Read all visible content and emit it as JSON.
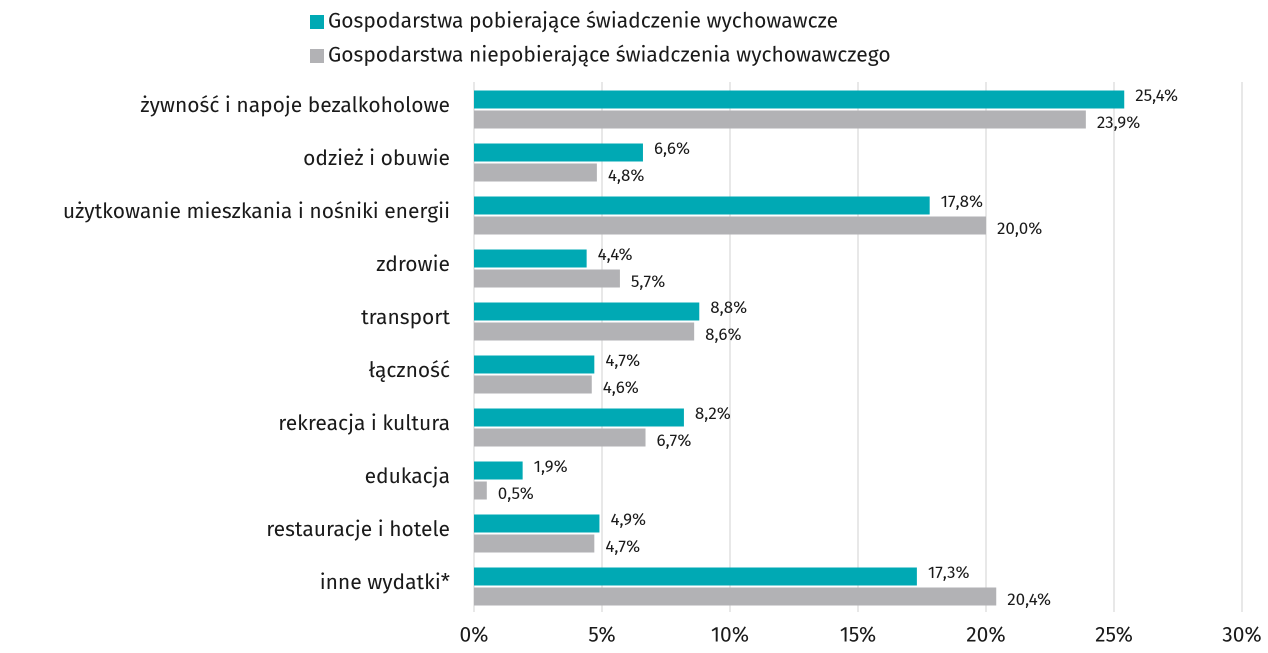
{
  "chart_data": {
    "type": "bar",
    "orientation": "horizontal",
    "categories": [
      "żywność i napoje bezalkoholowe",
      "odzież i obuwie",
      "użytkowanie mieszkania i nośniki energii",
      "zdrowie",
      "transport",
      "łączność",
      "rekreacja i kultura",
      "edukacja",
      "restauracje i hotele",
      "inne wydatki*"
    ],
    "series": [
      {
        "name": "Gospodarstwa pobierające świadczenie wychowawcze",
        "color": "#00a9b4",
        "values": [
          25.4,
          6.6,
          17.8,
          4.4,
          8.8,
          4.7,
          8.2,
          1.9,
          4.9,
          17.3
        ],
        "value_labels": [
          "25,4%",
          "6,6%",
          "17,8%",
          "4,4%",
          "8,8%",
          "4,7%",
          "8,2%",
          "1,9%",
          "4,9%",
          "17,3%"
        ]
      },
      {
        "name": "Gospodarstwa niepobierające świadczenia wychowawczego",
        "color": "#b2b2b5",
        "values": [
          23.9,
          4.8,
          20.0,
          5.7,
          8.6,
          4.6,
          6.7,
          0.5,
          4.7,
          20.4
        ],
        "value_labels": [
          "23,9%",
          "4,8%",
          "20,0%",
          "5,7%",
          "8,6%",
          "4,6%",
          "6,7%",
          "0,5%",
          "4,7%",
          "20,4%"
        ]
      }
    ],
    "xlim": [
      0,
      30
    ],
    "xticks": [
      {
        "value": 0,
        "label": "0%"
      },
      {
        "value": 5,
        "label": "5%"
      },
      {
        "value": 10,
        "label": "10%"
      },
      {
        "value": 15,
        "label": "15%"
      },
      {
        "value": 20,
        "label": "20%"
      },
      {
        "value": 25,
        "label": "25%"
      },
      {
        "value": 30,
        "label": "30%"
      }
    ],
    "grid": true,
    "legend": "top"
  }
}
